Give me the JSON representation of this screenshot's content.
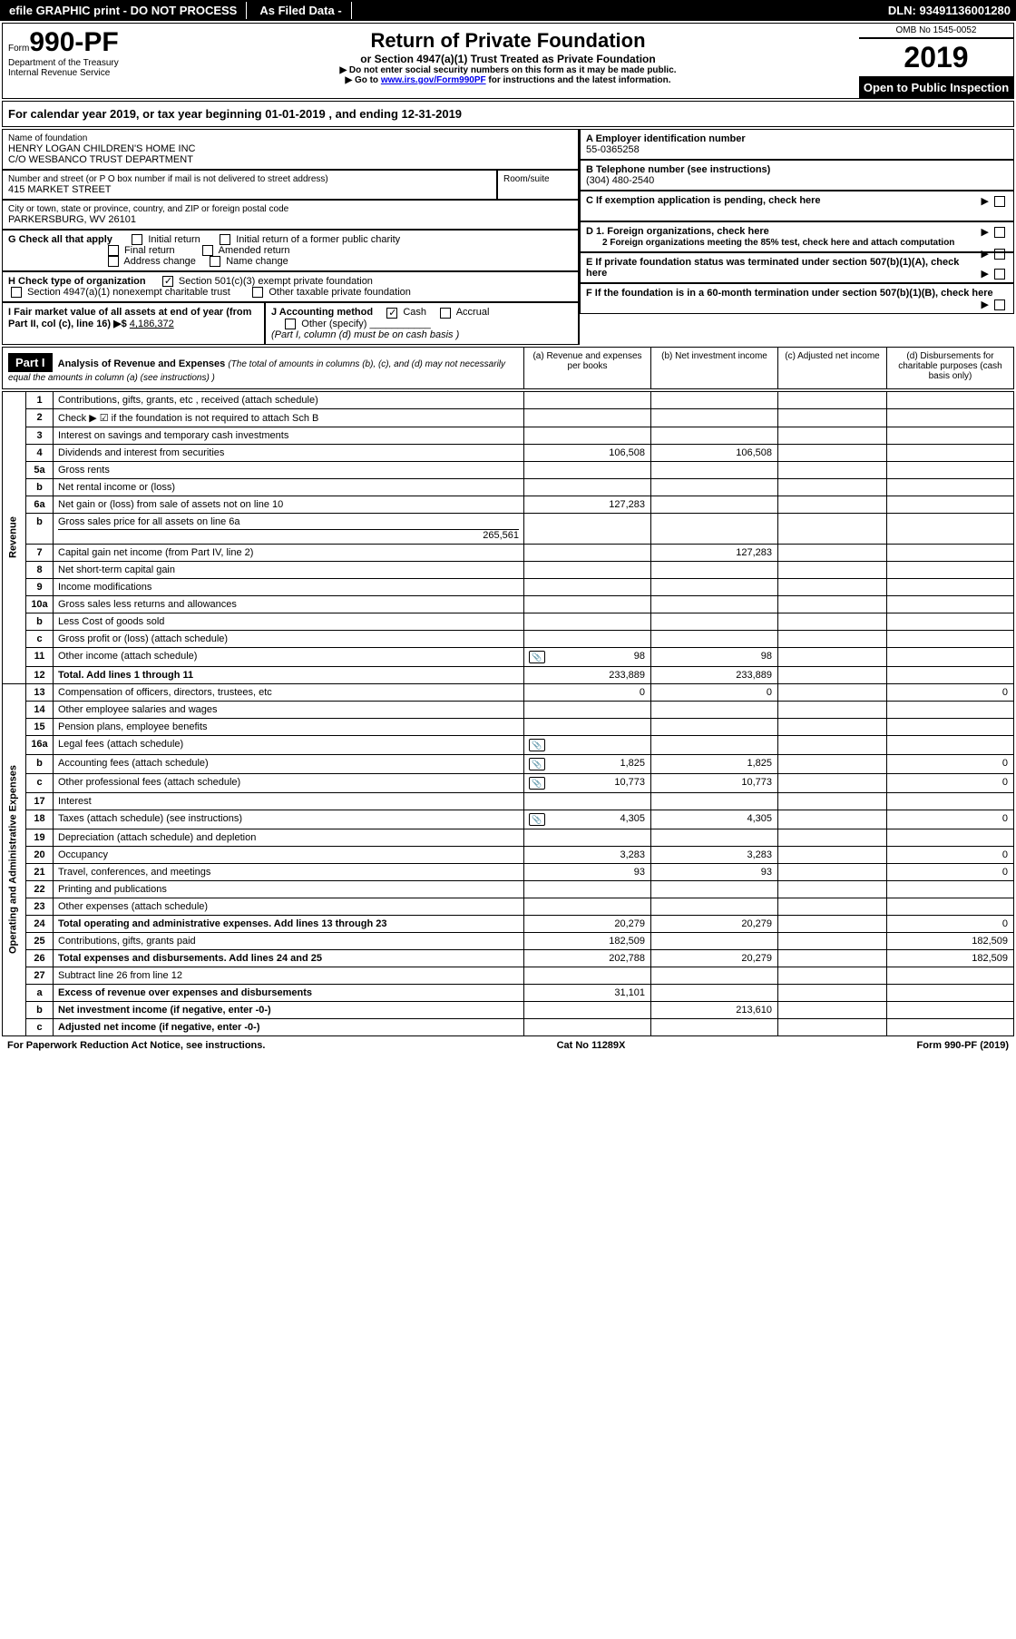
{
  "topbar": {
    "efile": "efile GRAPHIC print - DO NOT PROCESS",
    "asfiled": "As Filed Data -",
    "dln": "DLN: 93491136001280"
  },
  "header": {
    "form_prefix": "Form",
    "form_no": "990-PF",
    "dept": "Department of the Treasury",
    "irs": "Internal Revenue Service",
    "title": "Return of Private Foundation",
    "subtitle": "or Section 4947(a)(1) Trust Treated as Private Foundation",
    "note1": "▶ Do not enter social security numbers on this form as it may be made public.",
    "note2_pre": "▶ Go to ",
    "note2_link": "www.irs.gov/Form990PF",
    "note2_post": " for instructions and the latest information.",
    "omb": "OMB No 1545-0052",
    "year": "2019",
    "open": "Open to Public Inspection"
  },
  "calyear": {
    "text_pre": "For calendar year 2019, or tax year beginning ",
    "begin": "01-01-2019",
    "mid": " , and ending ",
    "end": "12-31-2019"
  },
  "left": {
    "name_label": "Name of foundation",
    "name1": "HENRY LOGAN CHILDREN'S HOME INC",
    "name2": "C/O WESBANCO TRUST DEPARTMENT",
    "addr_label": "Number and street (or P O  box number if mail is not delivered to street address)",
    "addr": "415 MARKET STREET",
    "room_label": "Room/suite",
    "city_label": "City or town, state or province, country, and ZIP or foreign postal code",
    "city": "PARKERSBURG, WV  26101",
    "g_label": "G Check all that apply",
    "g_opts": [
      "Initial return",
      "Initial return of a former public charity",
      "Final return",
      "Amended return",
      "Address change",
      "Name change"
    ],
    "h_label": "H Check type of organization",
    "h_501c3": "Section 501(c)(3) exempt private foundation",
    "h_4947": "Section 4947(a)(1) nonexempt charitable trust",
    "h_other": "Other taxable private foundation",
    "i_label": "I Fair market value of all assets at end of year (from Part II, col  (c), line 16) ▶$ ",
    "i_value": "4,186,372",
    "j_label": "J Accounting method",
    "j_cash": "Cash",
    "j_accrual": "Accrual",
    "j_other": "Other (specify)",
    "j_note": "(Part I, column (d) must be on cash basis )"
  },
  "right": {
    "a_label": "A Employer identification number",
    "a_val": "55-0365258",
    "b_label": "B Telephone number (see instructions)",
    "b_val": "(304) 480-2540",
    "c_label": "C If exemption application is pending, check here",
    "d1_label": "D 1. Foreign organizations, check here",
    "d2_label": "2 Foreign organizations meeting the 85% test, check here and attach computation",
    "e_label": "E If private foundation status was terminated under section 507(b)(1)(A), check here",
    "f_label": "F If the foundation is in a 60-month termination under section 507(b)(1)(B), check here"
  },
  "part1": {
    "badge": "Part I",
    "title": "Analysis of Revenue and Expenses",
    "title_note": " (The total of amounts in columns (b), (c), and (d) may not necessarily equal the amounts in column (a) (see instructions) )",
    "cols": {
      "a": "(a)   Revenue and expenses per books",
      "b": "(b)   Net investment income",
      "c": "(c)   Adjusted net income",
      "d": "(d)   Disbursements for charitable purposes (cash basis only)"
    }
  },
  "revenue_label": "Revenue",
  "expense_label": "Operating and Administrative Expenses",
  "rows": [
    {
      "n": "1",
      "label": "Contributions, gifts, grants, etc , received (attach schedule)"
    },
    {
      "n": "2",
      "label": "Check ▶ ☑ if the foundation is not required to attach Sch  B"
    },
    {
      "n": "3",
      "label": "Interest on savings and temporary cash investments"
    },
    {
      "n": "4",
      "label": "Dividends and interest from securities",
      "a": "106,508",
      "b": "106,508"
    },
    {
      "n": "5a",
      "label": "Gross rents"
    },
    {
      "n": "b",
      "label": "Net rental income or (loss)"
    },
    {
      "n": "6a",
      "label": "Net gain or (loss) from sale of assets not on line 10",
      "a": "127,283"
    },
    {
      "n": "b",
      "label": "Gross sales price for all assets on line 6a",
      "sub": "265,561"
    },
    {
      "n": "7",
      "label": "Capital gain net income (from Part IV, line 2)",
      "b": "127,283"
    },
    {
      "n": "8",
      "label": "Net short-term capital gain"
    },
    {
      "n": "9",
      "label": "Income modifications"
    },
    {
      "n": "10a",
      "label": "Gross sales less returns and allowances"
    },
    {
      "n": "b",
      "label": "Less  Cost of goods sold"
    },
    {
      "n": "c",
      "label": "Gross profit or (loss) (attach schedule)"
    },
    {
      "n": "11",
      "label": "Other income (attach schedule)",
      "icon": true,
      "a": "98",
      "b": "98"
    },
    {
      "n": "12",
      "label": "Total. Add lines 1 through 11",
      "bold": true,
      "a": "233,889",
      "b": "233,889"
    },
    {
      "n": "13",
      "label": "Compensation of officers, directors, trustees, etc",
      "a": "0",
      "b": "0",
      "d": "0"
    },
    {
      "n": "14",
      "label": "Other employee salaries and wages"
    },
    {
      "n": "15",
      "label": "Pension plans, employee benefits"
    },
    {
      "n": "16a",
      "label": "Legal fees (attach schedule)",
      "icon": true
    },
    {
      "n": "b",
      "label": "Accounting fees (attach schedule)",
      "icon": true,
      "a": "1,825",
      "b": "1,825",
      "d": "0"
    },
    {
      "n": "c",
      "label": "Other professional fees (attach schedule)",
      "icon": true,
      "a": "10,773",
      "b": "10,773",
      "d": "0"
    },
    {
      "n": "17",
      "label": "Interest"
    },
    {
      "n": "18",
      "label": "Taxes (attach schedule) (see instructions)",
      "icon": true,
      "a": "4,305",
      "b": "4,305",
      "d": "0"
    },
    {
      "n": "19",
      "label": "Depreciation (attach schedule) and depletion"
    },
    {
      "n": "20",
      "label": "Occupancy",
      "a": "3,283",
      "b": "3,283",
      "d": "0"
    },
    {
      "n": "21",
      "label": "Travel, conferences, and meetings",
      "a": "93",
      "b": "93",
      "d": "0"
    },
    {
      "n": "22",
      "label": "Printing and publications"
    },
    {
      "n": "23",
      "label": "Other expenses (attach schedule)"
    },
    {
      "n": "24",
      "label": "Total operating and administrative expenses. Add lines 13 through 23",
      "bold": true,
      "a": "20,279",
      "b": "20,279",
      "d": "0"
    },
    {
      "n": "25",
      "label": "Contributions, gifts, grants paid",
      "a": "182,509",
      "d": "182,509"
    },
    {
      "n": "26",
      "label": "Total expenses and disbursements. Add lines 24 and 25",
      "bold": true,
      "a": "202,788",
      "b": "20,279",
      "d": "182,509"
    },
    {
      "n": "27",
      "label": "Subtract line 26 from line 12"
    },
    {
      "n": "a",
      "label": "Excess of revenue over expenses and disbursements",
      "bold": true,
      "a": "31,101"
    },
    {
      "n": "b",
      "label": "Net investment income (if negative, enter -0-)",
      "bold": true,
      "b": "213,610"
    },
    {
      "n": "c",
      "label": "Adjusted net income (if negative, enter -0-)",
      "bold": true
    }
  ],
  "footer": {
    "left": "For Paperwork Reduction Act Notice, see instructions.",
    "mid": "Cat  No  11289X",
    "right": "Form 990-PF (2019)"
  }
}
